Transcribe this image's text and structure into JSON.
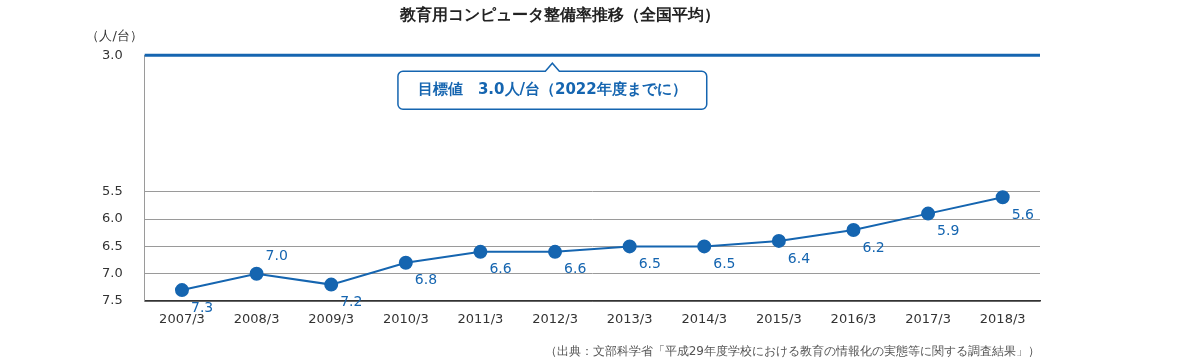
{
  "chart_data": {
    "type": "line",
    "title": "教育用コンピュータ整備率推移（全国平均）",
    "y_label": "（人/台）",
    "source": "（出典：文部科学省「平成29年度学校における教育の情報化の実態等に関する調査結果」）",
    "categories": [
      "2007/3",
      "2008/3",
      "2009/3",
      "2010/3",
      "2011/3",
      "2012/3",
      "2013/3",
      "2014/3",
      "2015/3",
      "2016/3",
      "2017/3",
      "2018/3"
    ],
    "values": [
      7.3,
      7.0,
      7.2,
      6.8,
      6.6,
      6.6,
      6.5,
      6.5,
      6.4,
      6.2,
      5.9,
      5.6
    ],
    "value_labels": [
      "7.3",
      "7.0",
      "7.2",
      "6.8",
      "6.6",
      "6.6",
      "6.5",
      "6.5",
      "6.4",
      "6.2",
      "5.9",
      "5.6"
    ],
    "color": "#1565b0",
    "marker": "circle",
    "ylim": [
      7.5,
      3.0
    ],
    "yticks": [
      {
        "value": 3,
        "label": "3.0"
      },
      5.5,
      {
        "value": 6,
        "label": "6.0"
      },
      6.5,
      {
        "value": 7,
        "label": "7.0"
      },
      7.5
    ],
    "grid": true,
    "data_labels": true,
    "target": {
      "value": 3,
      "label": "目標値　3.0人/台（2022年度までに）"
    }
  }
}
